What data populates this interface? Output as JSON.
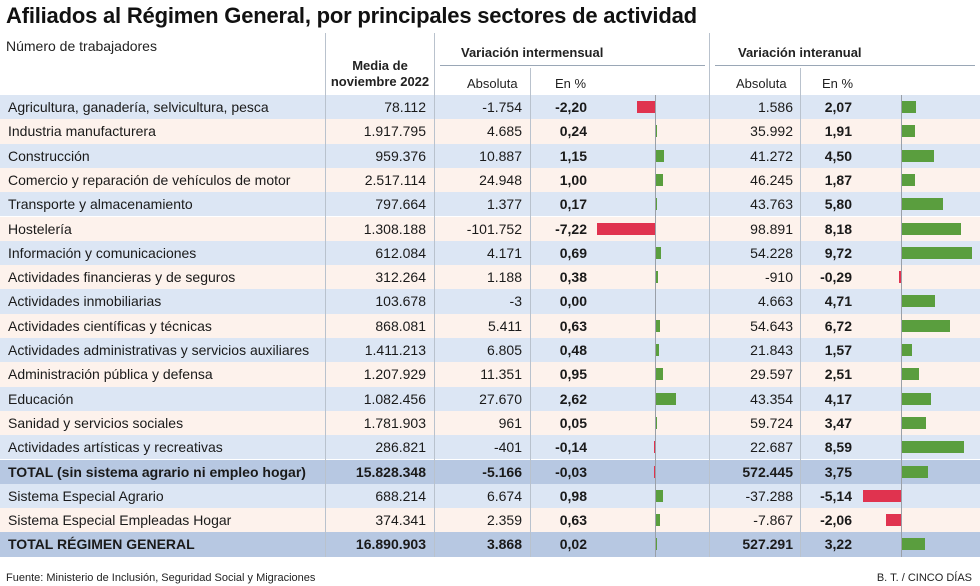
{
  "title": "Afiliados al Régimen General, por principales sectores de actividad",
  "header": {
    "units": "Número de trabajadores",
    "media_line1": "Media de",
    "media_line2": "noviembre 2022",
    "intermensual": "Variación intermensual",
    "interanual": "Variación interanual",
    "absoluta": "Absoluta",
    "en_pct": "En %"
  },
  "colors": {
    "positive": "#5a9e3e",
    "negative": "#e0334f",
    "row_blue": "#dce6f4",
    "row_pink": "#fdf2ec",
    "total": "#b7c8e2"
  },
  "rows": [
    {
      "label": "Agricultura, ganadería, selvicultura, pesca",
      "media": "78.112",
      "abs_m": "-1.754",
      "pct_m": "-2,20",
      "abs_a": "1.586",
      "pct_a": "2,07",
      "vm": -2.2,
      "va": 2.07
    },
    {
      "label": "Industria manufacturera",
      "media": "1.917.795",
      "abs_m": "4.685",
      "pct_m": "0,24",
      "abs_a": "35.992",
      "pct_a": "1,91",
      "vm": 0.24,
      "va": 1.91
    },
    {
      "label": "Construcción",
      "media": "959.376",
      "abs_m": "10.887",
      "pct_m": "1,15",
      "abs_a": "41.272",
      "pct_a": "4,50",
      "vm": 1.15,
      "va": 4.5
    },
    {
      "label": "Comercio y reparación de vehículos de motor",
      "media": "2.517.114",
      "abs_m": "24.948",
      "pct_m": "1,00",
      "abs_a": "46.245",
      "pct_a": "1,87",
      "vm": 1.0,
      "va": 1.87
    },
    {
      "label": "Transporte y almacenamiento",
      "media": "797.664",
      "abs_m": "1.377",
      "pct_m": "0,17",
      "abs_a": "43.763",
      "pct_a": "5,80",
      "vm": 0.17,
      "va": 5.8
    },
    {
      "label": "Hostelería",
      "media": "1.308.188",
      "abs_m": "-101.752",
      "pct_m": "-7,22",
      "abs_a": "98.891",
      "pct_a": "8,18",
      "vm": -7.22,
      "va": 8.18
    },
    {
      "label": "Información y comunicaciones",
      "media": "612.084",
      "abs_m": "4.171",
      "pct_m": "0,69",
      "abs_a": "54.228",
      "pct_a": "9,72",
      "vm": 0.69,
      "va": 9.72
    },
    {
      "label": "Actividades financieras y de seguros",
      "media": "312.264",
      "abs_m": "1.188",
      "pct_m": "0,38",
      "abs_a": "-910",
      "pct_a": "-0,29",
      "vm": 0.38,
      "va": -0.29
    },
    {
      "label": "Actividades inmobiliarias",
      "media": "103.678",
      "abs_m": "-3",
      "pct_m": "0,00",
      "abs_a": "4.663",
      "pct_a": "4,71",
      "vm": 0.0,
      "va": 4.71
    },
    {
      "label": "Actividades científicas y técnicas",
      "media": "868.081",
      "abs_m": "5.411",
      "pct_m": "0,63",
      "abs_a": "54.643",
      "pct_a": "6,72",
      "vm": 0.63,
      "va": 6.72
    },
    {
      "label": "Actividades administrativas y servicios auxiliares",
      "media": "1.411.213",
      "abs_m": "6.805",
      "pct_m": "0,48",
      "abs_a": "21.843",
      "pct_a": "1,57",
      "vm": 0.48,
      "va": 1.57
    },
    {
      "label": "Administración pública y defensa",
      "media": "1.207.929",
      "abs_m": "11.351",
      "pct_m": "0,95",
      "abs_a": "29.597",
      "pct_a": "2,51",
      "vm": 0.95,
      "va": 2.51
    },
    {
      "label": "Educación",
      "media": "1.082.456",
      "abs_m": "27.670",
      "pct_m": "2,62",
      "abs_a": "43.354",
      "pct_a": "4,17",
      "vm": 2.62,
      "va": 4.17
    },
    {
      "label": "Sanidad y servicios sociales",
      "media": "1.781.903",
      "abs_m": "961",
      "pct_m": "0,05",
      "abs_a": "59.724",
      "pct_a": "3,47",
      "vm": 0.05,
      "va": 3.47
    },
    {
      "label": "Actividades artísticas y recreativas",
      "media": "286.821",
      "abs_m": "-401",
      "pct_m": "-0,14",
      "abs_a": "22.687",
      "pct_a": "8,59",
      "vm": -0.14,
      "va": 8.59
    },
    {
      "label": "TOTAL (sin sistema agrario ni empleo hogar)",
      "media": "15.828.348",
      "abs_m": "-5.166",
      "pct_m": "-0,03",
      "abs_a": "572.445",
      "pct_a": "3,75",
      "vm": -0.03,
      "va": 3.75,
      "total": true
    },
    {
      "label": "Sistema Especial Agrario",
      "media": "688.214",
      "abs_m": "6.674",
      "pct_m": "0,98",
      "abs_a": "-37.288",
      "pct_a": "-5,14",
      "vm": 0.98,
      "va": -5.14
    },
    {
      "label": "Sistema Especial Empleadas Hogar",
      "media": "374.341",
      "abs_m": "2.359",
      "pct_m": "0,63",
      "abs_a": "-7.867",
      "pct_a": "-2,06",
      "vm": 0.63,
      "va": -2.06
    },
    {
      "label": "TOTAL RÉGIMEN GENERAL",
      "media": "16.890.903",
      "abs_m": "3.868",
      "pct_m": "0,02",
      "abs_a": "527.291",
      "pct_a": "3,22",
      "vm": 0.02,
      "va": 3.22,
      "total": true
    }
  ],
  "footer": {
    "source": "Fuente: Ministerio de Inclusión, Seguridad Social y Migraciones",
    "credit": "B. T. / CINCO DÍAS"
  }
}
